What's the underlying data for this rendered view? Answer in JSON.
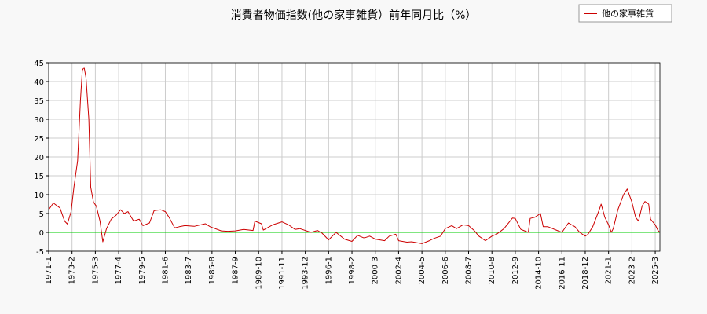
{
  "chart_data": {
    "type": "line",
    "title": "消費者物価指数(他の家事雑貨）前年同月比（%）",
    "xlabel": "",
    "ylabel": "",
    "ylim": [
      -5,
      45
    ],
    "yticks": [
      -5,
      0,
      5,
      10,
      15,
      20,
      25,
      30,
      35,
      40,
      45
    ],
    "x_start": "1971-1",
    "x_end": "2025-8",
    "xtick_labels": [
      "1971-1",
      "1973-2",
      "1975-3",
      "1977-4",
      "1979-5",
      "1981-6",
      "1983-7",
      "1985-8",
      "1987-9",
      "1989-10",
      "1991-11",
      "1993-12",
      "1996-1",
      "1998-2",
      "2000-3",
      "2002-4",
      "2004-5",
      "2006-6",
      "2008-7",
      "2010-8",
      "2012-9",
      "2014-10",
      "2016-11",
      "2018-12",
      "2021-1",
      "2023-2",
      "2025-3"
    ],
    "grid": true,
    "legend_position": "top-right",
    "reference_line": 0,
    "colors": {
      "series": "#cc0000",
      "zero_line": "#00cc00",
      "grid": "#cccccc",
      "plot_bg": "#ffffff"
    },
    "series": [
      {
        "name": "他の家事雑貨",
        "points": [
          [
            "1971-1",
            6
          ],
          [
            "1971-6",
            7.8
          ],
          [
            "1972-1",
            6.5
          ],
          [
            "1972-6",
            3
          ],
          [
            "1972-9",
            2.2
          ],
          [
            "1973-1",
            5.5
          ],
          [
            "1973-4",
            12
          ],
          [
            "1973-8",
            19
          ],
          [
            "1973-11",
            35
          ],
          [
            "1974-1",
            43
          ],
          [
            "1974-3",
            43.8
          ],
          [
            "1974-5",
            41
          ],
          [
            "1974-8",
            30
          ],
          [
            "1974-10",
            12
          ],
          [
            "1975-1",
            8
          ],
          [
            "1975-4",
            7
          ],
          [
            "1975-8",
            3
          ],
          [
            "1975-11",
            -2.5
          ],
          [
            "1976-3",
            1
          ],
          [
            "1976-8",
            3.5
          ],
          [
            "1977-1",
            4.5
          ],
          [
            "1977-6",
            6
          ],
          [
            "1977-10",
            5
          ],
          [
            "1978-2",
            5.5
          ],
          [
            "1978-8",
            3
          ],
          [
            "1979-2",
            3.5
          ],
          [
            "1979-6",
            1.8
          ],
          [
            "1980-1",
            2.5
          ],
          [
            "1980-6",
            5.8
          ],
          [
            "1981-1",
            6
          ],
          [
            "1981-6",
            5.5
          ],
          [
            "1981-10",
            4
          ],
          [
            "1982-4",
            1.2
          ],
          [
            "1982-9",
            1.5
          ],
          [
            "1983-3",
            1.8
          ],
          [
            "1984-1",
            1.6
          ],
          [
            "1985-1",
            2.3
          ],
          [
            "1985-6",
            1.5
          ],
          [
            "1986-6",
            0.4
          ],
          [
            "1987-1",
            0.3
          ],
          [
            "1987-9",
            0.4
          ],
          [
            "1988-6",
            0.8
          ],
          [
            "1989-4",
            0.5
          ],
          [
            "1989-6",
            3
          ],
          [
            "1990-1",
            2.3
          ],
          [
            "1990-3",
            0.6
          ],
          [
            "1991-1",
            2
          ],
          [
            "1991-11",
            2.8
          ],
          [
            "1992-6",
            2
          ],
          [
            "1993-1",
            0.8
          ],
          [
            "1993-6",
            1
          ],
          [
            "1994-6",
            0
          ],
          [
            "1995-1",
            0.5
          ],
          [
            "1995-6",
            -0.2
          ],
          [
            "1996-1",
            -2
          ],
          [
            "1996-9",
            0
          ],
          [
            "1997-6",
            -1.8
          ],
          [
            "1998-2",
            -2.4
          ],
          [
            "1998-8",
            -0.8
          ],
          [
            "1999-3",
            -1.5
          ],
          [
            "1999-9",
            -1
          ],
          [
            "2000-3",
            -1.8
          ],
          [
            "2001-1",
            -2.2
          ],
          [
            "2001-6",
            -1
          ],
          [
            "2002-1",
            -0.5
          ],
          [
            "2002-4",
            -2.2
          ],
          [
            "2003-1",
            -2.6
          ],
          [
            "2003-6",
            -2.5
          ],
          [
            "2004-5",
            -3
          ],
          [
            "2005-1",
            -2.2
          ],
          [
            "2005-6",
            -1.6
          ],
          [
            "2006-1",
            -1
          ],
          [
            "2006-6",
            1
          ],
          [
            "2007-1",
            1.8
          ],
          [
            "2007-6",
            1
          ],
          [
            "2008-1",
            2
          ],
          [
            "2008-7",
            1.8
          ],
          [
            "2009-1",
            0.5
          ],
          [
            "2009-6",
            -1
          ],
          [
            "2010-1",
            -2.2
          ],
          [
            "2010-8",
            -1
          ],
          [
            "2011-1",
            -0.5
          ],
          [
            "2011-9",
            1
          ],
          [
            "2012-6",
            3.8
          ],
          [
            "2012-9",
            3.7
          ],
          [
            "2013-3",
            0.8
          ],
          [
            "2013-6",
            0.5
          ],
          [
            "2013-11",
            0
          ],
          [
            "2014-1",
            3.7
          ],
          [
            "2014-6",
            4
          ],
          [
            "2014-12",
            5
          ],
          [
            "2015-3",
            1.5
          ],
          [
            "2015-8",
            1.5
          ],
          [
            "2016-1",
            1
          ],
          [
            "2016-6",
            0.5
          ],
          [
            "2016-11",
            0
          ],
          [
            "2017-6",
            2.5
          ],
          [
            "2018-1",
            1.5
          ],
          [
            "2018-6",
            0
          ],
          [
            "2018-12",
            -1
          ],
          [
            "2019-3",
            -0.5
          ],
          [
            "2019-8",
            1.5
          ],
          [
            "2020-3",
            6
          ],
          [
            "2020-5",
            7.5
          ],
          [
            "2020-9",
            4
          ],
          [
            "2021-1",
            2
          ],
          [
            "2021-4",
            0
          ],
          [
            "2021-6",
            1
          ],
          [
            "2021-11",
            6
          ],
          [
            "2022-5",
            10
          ],
          [
            "2022-9",
            11.5
          ],
          [
            "2023-2",
            8
          ],
          [
            "2023-6",
            4
          ],
          [
            "2023-9",
            3
          ],
          [
            "2024-1",
            7
          ],
          [
            "2024-4",
            8.2
          ],
          [
            "2024-8",
            7.5
          ],
          [
            "2024-10",
            3.5
          ],
          [
            "2025-3",
            2
          ],
          [
            "2025-6",
            0.5
          ],
          [
            "2025-8",
            0
          ]
        ]
      }
    ]
  }
}
